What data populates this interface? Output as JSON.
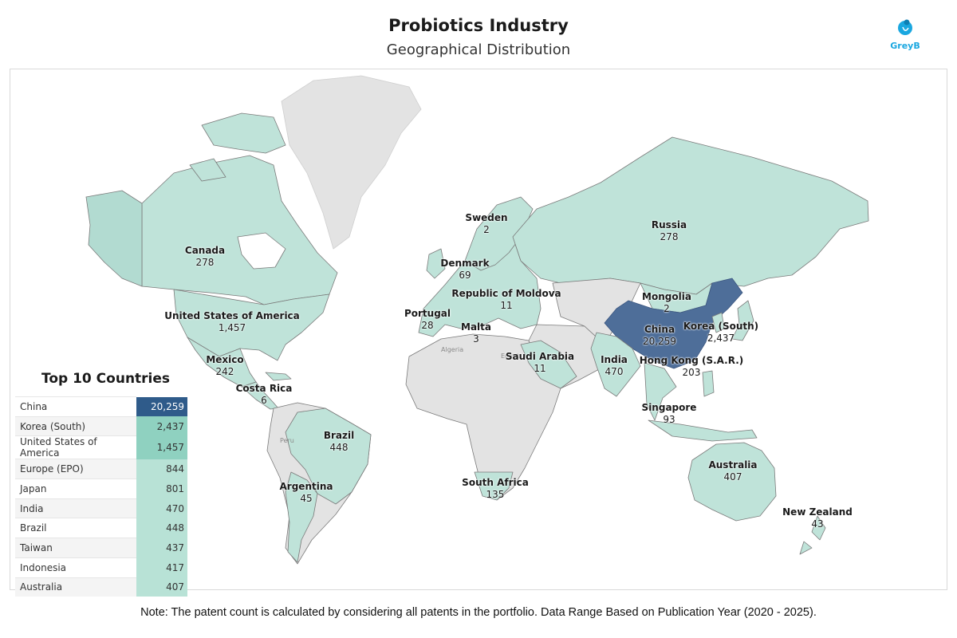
{
  "header": {
    "title": "Probiotics Industry",
    "subtitle": "Geographical Distribution",
    "brand": "GreyB"
  },
  "colors": {
    "highlight": "#4e6e99",
    "land_with_data": "#bfe3d9",
    "land_no_data": "#e3e3e3",
    "border": "#7a7a7a",
    "table_top": "#2f5b8a",
    "table_mid": "#8fd1c0",
    "table_low": "#b8e2d6"
  },
  "map": {
    "background_labels": [
      "Algeria",
      "Peru",
      "Egypt"
    ],
    "labels": [
      {
        "name": "Sweden",
        "value": "2"
      },
      {
        "name": "Russia",
        "value": "278"
      },
      {
        "name": "Canada",
        "value": "278"
      },
      {
        "name": "Denmark",
        "value": "69"
      },
      {
        "name": "Republic of Moldova",
        "value": "11"
      },
      {
        "name": "Mongolia",
        "value": "2"
      },
      {
        "name": "Portugal",
        "value": "28"
      },
      {
        "name": "United States of America",
        "value": "1,457"
      },
      {
        "name": "Malta",
        "value": "3"
      },
      {
        "name": "China",
        "value": "20,259"
      },
      {
        "name": "Korea (South)",
        "value": "2,437"
      },
      {
        "name": "Saudi Arabia",
        "value": "11"
      },
      {
        "name": "India",
        "value": "470"
      },
      {
        "name": "Hong Kong (S.A.R.)",
        "value": "203"
      },
      {
        "name": "Mexico",
        "value": "242"
      },
      {
        "name": "Costa Rica",
        "value": "6"
      },
      {
        "name": "Singapore",
        "value": "93"
      },
      {
        "name": "Brazil",
        "value": "448"
      },
      {
        "name": "Australia",
        "value": "407"
      },
      {
        "name": "South Africa",
        "value": "135"
      },
      {
        "name": "Argentina",
        "value": "45"
      },
      {
        "name": "New Zealand",
        "value": "43"
      }
    ]
  },
  "top_countries": {
    "title": "Top 10 Countries",
    "rows": [
      {
        "country": "China",
        "value": "20,259",
        "count": 20259
      },
      {
        "country": "Korea (South)",
        "value": "2,437",
        "count": 2437
      },
      {
        "country": "United States of America",
        "value": "1,457",
        "count": 1457
      },
      {
        "country": "Europe (EPO)",
        "value": "844",
        "count": 844
      },
      {
        "country": "Japan",
        "value": "801",
        "count": 801
      },
      {
        "country": "India",
        "value": "470",
        "count": 470
      },
      {
        "country": "Brazil",
        "value": "448",
        "count": 448
      },
      {
        "country": "Taiwan",
        "value": "437",
        "count": 437
      },
      {
        "country": "Indonesia",
        "value": "417",
        "count": 417
      },
      {
        "country": "Australia",
        "value": "407",
        "count": 407
      }
    ]
  },
  "footer": {
    "note": "Note: The patent count is calculated by considering all patents in the portfolio. Data Range Based on Publication Year (2020 - 2025)."
  }
}
